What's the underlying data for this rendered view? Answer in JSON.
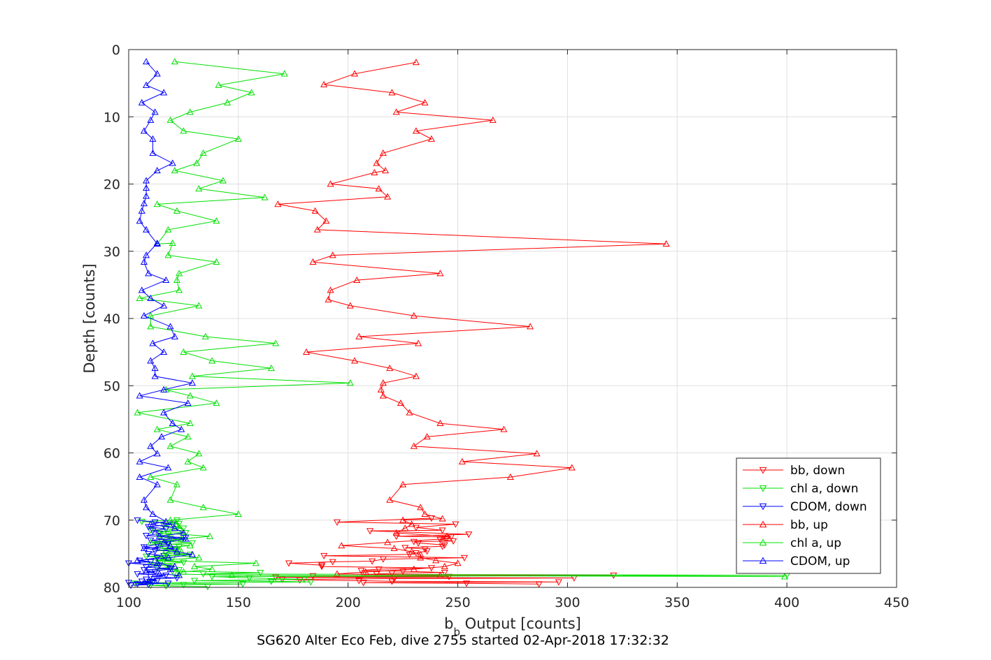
{
  "chart_data": {
    "type": "line",
    "xlabel_base": "b",
    "xlabel_sub": "b",
    "xlabel_rest": " Output [counts]",
    "ylabel": "Depth [counts]",
    "footer": "SG620 Alter Eco Feb, dive 2755 started 02-Apr-2018 17:32:32",
    "xlim": [
      100,
      450
    ],
    "ylim": [
      0,
      80
    ],
    "y_reversed": true,
    "x_ticks": [
      100,
      150,
      200,
      250,
      300,
      350,
      400,
      450
    ],
    "y_ticks": [
      0,
      10,
      20,
      30,
      40,
      50,
      60,
      70,
      80
    ],
    "x_tick_labels": [
      "100",
      "150",
      "200",
      "250",
      "300",
      "350",
      "400",
      "450"
    ],
    "y_tick_labels": [
      "0",
      "10",
      "20",
      "30",
      "40",
      "50",
      "60",
      "70",
      "80"
    ],
    "grid": true,
    "legend_position": "bottom-right",
    "series": [
      {
        "name": "bb, down",
        "color": "#ff0000",
        "marker": "triangle-down",
        "x": [
          238,
          195,
          249,
          231,
          243,
          210,
          255,
          222,
          247,
          245,
          242,
          248,
          230,
          232,
          244,
          243,
          226,
          235,
          236,
          231,
          228,
          189,
          253,
          216,
          211,
          193,
          173,
          188,
          188,
          238,
          214,
          206,
          225,
          244,
          220,
          213,
          207,
          321,
          184,
          246,
          167,
          303,
          221,
          170,
          178,
          205,
          220,
          296,
          207,
          254,
          287
        ],
        "y": [
          69.7,
          70.3,
          70.6,
          71.1,
          71.5,
          71.6,
          72.1,
          72.4,
          72.5,
          72.7,
          72.9,
          73.1,
          73.2,
          73.4,
          73.7,
          73.9,
          74.1,
          74.3,
          74.6,
          74.9,
          75.1,
          75.3,
          75.6,
          75.8,
          76.1,
          76.2,
          76.4,
          76.7,
          76.9,
          77.1,
          77.3,
          77.5,
          77.6,
          77.8,
          77.9,
          78.0,
          78.1,
          78.2,
          78.3,
          78.4,
          78.5,
          78.6,
          78.7,
          78.8,
          78.9,
          79.0,
          79.1,
          79.2,
          79.3,
          79.4,
          79.5
        ]
      },
      {
        "name": "chl a, down",
        "color": "#00e000",
        "marker": "triangle-down",
        "x": [
          122,
          106,
          123,
          116,
          125,
          110,
          126,
          118,
          114,
          119,
          124,
          115,
          129,
          118,
          113,
          123,
          122,
          121,
          117,
          128,
          108,
          120,
          114,
          116,
          125,
          110,
          118,
          119,
          113,
          123,
          120,
          160,
          134,
          400,
          138,
          155,
          180,
          130,
          165,
          183,
          110,
          103,
          152,
          125,
          110,
          117,
          136
        ],
        "y": [
          70.0,
          70.2,
          70.5,
          70.8,
          71.2,
          71.5,
          71.9,
          72.1,
          72.4,
          72.7,
          72.9,
          73.1,
          73.4,
          73.6,
          73.8,
          74.0,
          74.3,
          74.5,
          74.8,
          75.1,
          75.4,
          75.6,
          75.9,
          76.1,
          76.3,
          76.6,
          76.8,
          77.0,
          77.2,
          77.4,
          77.6,
          77.8,
          78.0,
          78.2,
          78.4,
          78.6,
          78.8,
          79.0,
          79.1,
          79.2,
          79.3,
          79.4,
          79.5,
          79.6,
          79.7,
          79.8,
          79.9
        ]
      },
      {
        "name": "CDOM, down",
        "color": "#0000ff",
        "marker": "triangle-down",
        "x": [
          104,
          112,
          120,
          109,
          117,
          111,
          114,
          108,
          126,
          110,
          118,
          113,
          107,
          121,
          112,
          109,
          116,
          113,
          105,
          110,
          100,
          114,
          108,
          119,
          107,
          112,
          104,
          117,
          110,
          122,
          108,
          113,
          106,
          111,
          100,
          118,
          104,
          109,
          101
        ],
        "y": [
          70.0,
          70.3,
          70.6,
          71.0,
          71.3,
          71.6,
          72.0,
          72.3,
          72.6,
          73.0,
          73.3,
          73.6,
          74.0,
          74.3,
          74.6,
          75.0,
          75.3,
          75.6,
          76.0,
          76.2,
          76.4,
          76.7,
          77.0,
          77.2,
          77.4,
          77.7,
          78.0,
          78.2,
          78.4,
          78.6,
          78.8,
          79.0,
          79.1,
          79.2,
          79.3,
          79.4,
          79.5,
          79.6,
          79.7
        ]
      },
      {
        "name": "bb, up",
        "color": "#ff0000",
        "marker": "triangle-up",
        "x": [
          231,
          203,
          189,
          220,
          235,
          222,
          266,
          231,
          238,
          216,
          213,
          217,
          212,
          192,
          214,
          218,
          168,
          185,
          190,
          186,
          345,
          193,
          184,
          242,
          204,
          192,
          191,
          201,
          230,
          283,
          205,
          232,
          181,
          203,
          219,
          231,
          216,
          215,
          216,
          224,
          228,
          242,
          271,
          236,
          230,
          286,
          252,
          302,
          274,
          225,
          219,
          233,
          235,
          243,
          225,
          229,
          226,
          222,
          245,
          243,
          218,
          197,
          221,
          229,
          233,
          233,
          240,
          250,
          244,
          230,
          208,
          195,
          242
        ],
        "y": [
          1.9,
          3.6,
          5.2,
          6.4,
          7.9,
          9.3,
          10.5,
          12.1,
          13.3,
          15.4,
          16.9,
          18.0,
          18.3,
          20.0,
          20.7,
          21.9,
          23.0,
          24.0,
          25.5,
          26.8,
          28.9,
          30.6,
          31.6,
          33.3,
          34.3,
          35.8,
          37.2,
          38.1,
          39.6,
          41.2,
          42.7,
          43.7,
          45.0,
          46.3,
          47.4,
          48.6,
          49.6,
          50.6,
          51.5,
          52.6,
          54.0,
          55.6,
          56.5,
          57.6,
          59.0,
          60.1,
          61.3,
          62.2,
          63.6,
          64.7,
          67.0,
          68.1,
          69.1,
          69.8,
          70.0,
          70.6,
          71.2,
          71.9,
          72.4,
          72.8,
          73.3,
          73.8,
          74.2,
          74.7,
          75.1,
          75.6,
          76.0,
          76.4,
          76.9,
          77.3,
          77.7,
          78.0,
          78.2
        ]
      },
      {
        "name": "chl a, up",
        "color": "#00e000",
        "marker": "triangle-up",
        "x": [
          121,
          171,
          141,
          156,
          145,
          128,
          119,
          125,
          150,
          134,
          131,
          121,
          143,
          132,
          162,
          113,
          122,
          140,
          118,
          113,
          120,
          118,
          140,
          123,
          122,
          123,
          105,
          132,
          110,
          110,
          135,
          167,
          125,
          138,
          165,
          129,
          201,
          117,
          128,
          140,
          104,
          128,
          113,
          127,
          119,
          132,
          127,
          134,
          110,
          122,
          119,
          134,
          150,
          119,
          122,
          123,
          114,
          137,
          124,
          110,
          128,
          115,
          124,
          116,
          132,
          112,
          158,
          130,
          138,
          125,
          122,
          147,
          399
        ],
        "y": [
          1.8,
          3.6,
          5.3,
          6.4,
          7.9,
          9.3,
          10.5,
          12.1,
          13.3,
          15.4,
          16.9,
          18.0,
          19.5,
          20.7,
          22.0,
          23.0,
          24.0,
          25.5,
          26.8,
          28.9,
          28.8,
          30.6,
          31.6,
          33.3,
          34.3,
          35.8,
          37.0,
          38.1,
          39.6,
          41.2,
          42.7,
          43.7,
          45.0,
          46.3,
          47.4,
          48.6,
          49.6,
          50.6,
          51.5,
          52.6,
          54.0,
          55.6,
          56.5,
          57.6,
          59.0,
          60.1,
          61.3,
          62.2,
          63.6,
          64.7,
          67.0,
          68.1,
          69.1,
          70.0,
          70.6,
          71.2,
          71.9,
          72.4,
          72.8,
          73.3,
          73.8,
          74.2,
          74.7,
          75.1,
          75.6,
          76.0,
          76.4,
          76.9,
          77.3,
          77.7,
          78.0,
          78.2,
          78.4
        ]
      },
      {
        "name": "CDOM, up",
        "color": "#0000ff",
        "marker": "triangle-up",
        "x": [
          108,
          113,
          108,
          116,
          106,
          112,
          110,
          107,
          111,
          111,
          120,
          113,
          108,
          108,
          108,
          107,
          106,
          105,
          108,
          113,
          113,
          108,
          107,
          109,
          117,
          106,
          110,
          116,
          107,
          119,
          121,
          111,
          116,
          110,
          112,
          112,
          129,
          116,
          105,
          127,
          116,
          120,
          124,
          115,
          110,
          113,
          105,
          118,
          105,
          113,
          107,
          108,
          111,
          117,
          110,
          121,
          125,
          114,
          126,
          116,
          119,
          107,
          122,
          129,
          118,
          104,
          113,
          121,
          119,
          108,
          114,
          123
        ],
        "y": [
          1.8,
          3.6,
          5.3,
          6.4,
          7.9,
          9.3,
          10.5,
          12.1,
          13.3,
          15.4,
          16.9,
          18.0,
          19.5,
          20.6,
          21.8,
          22.9,
          24.0,
          25.5,
          26.8,
          28.9,
          28.8,
          30.6,
          31.6,
          33.3,
          34.3,
          35.8,
          37.0,
          38.1,
          39.6,
          41.2,
          42.7,
          43.7,
          45.0,
          46.3,
          47.4,
          48.6,
          49.6,
          50.6,
          51.5,
          52.6,
          54.0,
          55.6,
          56.5,
          57.6,
          59.0,
          60.1,
          61.3,
          62.2,
          63.6,
          64.7,
          67.0,
          68.1,
          69.1,
          70.2,
          70.6,
          71.2,
          71.9,
          72.4,
          72.8,
          73.3,
          73.8,
          74.2,
          74.7,
          75.1,
          75.6,
          76.0,
          76.4,
          76.9,
          77.3,
          77.7,
          78.0,
          78.2
        ]
      }
    ]
  }
}
